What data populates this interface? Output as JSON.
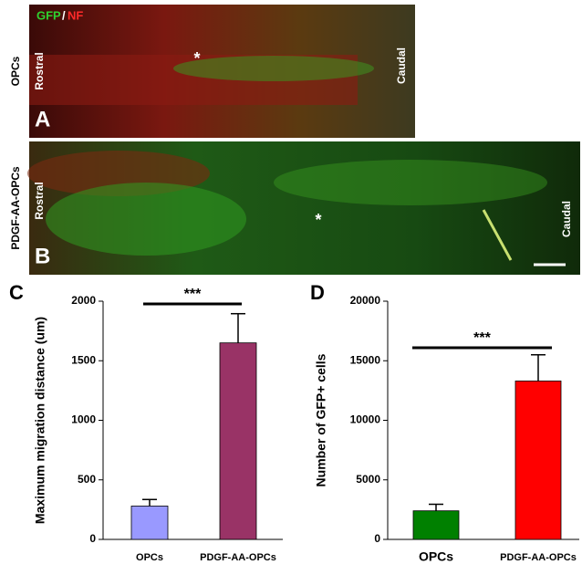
{
  "panels": [
    {
      "letter": "A",
      "side_label": "OPCs",
      "left": "Rostral",
      "right": "Caudal",
      "stain": [
        "GFP",
        "/",
        "NF"
      ],
      "marker": "*"
    },
    {
      "letter": "B",
      "side_label": "PDGF-AA-OPCs",
      "left": "Rostral",
      "right": "Caudal",
      "marker": "*"
    }
  ],
  "chart_data": [
    {
      "type": "bar",
      "letter": "C",
      "y_label": "Maximum migration distance (um)",
      "categories": [
        "OPCs",
        "PDGF-AA-OPCs"
      ],
      "values": [
        280,
        1650
      ],
      "errors": [
        55,
        245
      ],
      "colors": [
        "#9999ff",
        "#993366"
      ],
      "ylim": [
        0,
        2000
      ],
      "yticks": [
        0,
        500,
        1000,
        1500,
        2000
      ],
      "annotation": "***"
    },
    {
      "type": "bar",
      "letter": "D",
      "y_label": "Number of GFP+ cells",
      "categories": [
        "OPCs",
        "PDGF-AA-OPCs"
      ],
      "values": [
        2400,
        13300
      ],
      "errors": [
        550,
        2200
      ],
      "colors": [
        "#008000",
        "#ff0000"
      ],
      "ylim": [
        0,
        20000
      ],
      "yticks": [
        0,
        5000,
        10000,
        15000,
        20000
      ],
      "annotation": "***"
    }
  ]
}
